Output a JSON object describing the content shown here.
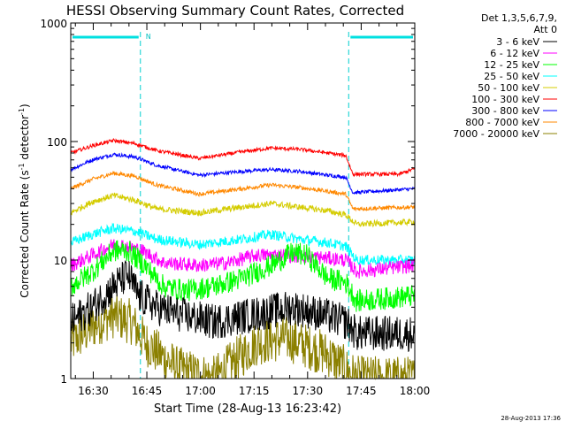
{
  "chart_data": {
    "type": "line",
    "title": "HESSI Observing Summary Count Rates, Corrected",
    "xlabel": "Start Time (28-Aug-13 16:23:42)",
    "ylabel_main": "Corrected Count Rate (s",
    "ylabel_sup1": "-1",
    "ylabel_mid": " detector",
    "ylabel_sup2": "-1",
    "ylabel_end": ")",
    "y_scale": "log",
    "ylim": [
      1,
      1000
    ],
    "xlim_minutes": [
      0,
      96.3
    ],
    "xticks": [
      {
        "label": "16:30",
        "m": 6.3
      },
      {
        "label": "16:45",
        "m": 21.3
      },
      {
        "label": "17:00",
        "m": 36.3
      },
      {
        "label": "17:15",
        "m": 51.3
      },
      {
        "label": "17:30",
        "m": 66.3
      },
      {
        "label": "17:45",
        "m": 81.3
      },
      {
        "label": "18:00",
        "m": 96.3
      }
    ],
    "yticks": [
      {
        "label": "1",
        "v": 1
      },
      {
        "label": "10",
        "v": 10
      },
      {
        "label": "100",
        "v": 100
      },
      {
        "label": "1000",
        "v": 1000
      }
    ],
    "grid": false,
    "legend_position": "right",
    "legend_header": [
      "Det 1,3,5,6,7,9,",
      "Att 0"
    ],
    "footer": "28-Aug-2013 17:36",
    "night_band_marker": "N",
    "night_intervals_minutes": [
      [
        0,
        19.5
      ],
      [
        77.8,
        96.3
      ]
    ],
    "series": [
      {
        "name": "3 - 6 keV",
        "color": "#000000",
        "knots": [
          [
            0,
            3
          ],
          [
            6,
            4
          ],
          [
            12,
            6
          ],
          [
            16,
            7.5
          ],
          [
            19,
            5
          ],
          [
            24,
            4
          ],
          [
            30,
            3.5
          ],
          [
            40,
            3
          ],
          [
            52,
            3.5
          ],
          [
            62,
            4
          ],
          [
            70,
            3.5
          ],
          [
            77,
            3
          ],
          [
            80,
            2.4
          ],
          [
            96.3,
            2.4
          ]
        ],
        "noise": 0.35
      },
      {
        "name": "6 - 12 keV",
        "color": "#ff00ff",
        "knots": [
          [
            0,
            9
          ],
          [
            6,
            11
          ],
          [
            12,
            13.5
          ],
          [
            16,
            13
          ],
          [
            20,
            12
          ],
          [
            26,
            9.5
          ],
          [
            36,
            9
          ],
          [
            44,
            9.5
          ],
          [
            52,
            11
          ],
          [
            60,
            11
          ],
          [
            70,
            10.5
          ],
          [
            77,
            10
          ],
          [
            80,
            8
          ],
          [
            96.3,
            9
          ]
        ],
        "noise": 0.14
      },
      {
        "name": "12 - 25 keV",
        "color": "#00ff00",
        "knots": [
          [
            0,
            6
          ],
          [
            6,
            8
          ],
          [
            12,
            12
          ],
          [
            16,
            12
          ],
          [
            20,
            9.5
          ],
          [
            26,
            6
          ],
          [
            32,
            5.5
          ],
          [
            40,
            6
          ],
          [
            48,
            7
          ],
          [
            56,
            9
          ],
          [
            62,
            11.5
          ],
          [
            66,
            11
          ],
          [
            72,
            7
          ],
          [
            77,
            6.5
          ],
          [
            80,
            4.5
          ],
          [
            96.3,
            5
          ]
        ],
        "noise": 0.22
      },
      {
        "name": "25 - 50 keV",
        "color": "#00ffff",
        "knots": [
          [
            0,
            14
          ],
          [
            6,
            16.5
          ],
          [
            12,
            18.5
          ],
          [
            18,
            17.5
          ],
          [
            24,
            15
          ],
          [
            36,
            13.5
          ],
          [
            48,
            15
          ],
          [
            56,
            16.5
          ],
          [
            64,
            15
          ],
          [
            72,
            14
          ],
          [
            77,
            13
          ],
          [
            80,
            10
          ],
          [
            96.3,
            10
          ]
        ],
        "noise": 0.1
      },
      {
        "name": "50 - 100 keV",
        "color": "#d4cc00",
        "knots": [
          [
            0,
            25
          ],
          [
            6,
            31
          ],
          [
            12,
            35
          ],
          [
            18,
            32
          ],
          [
            24,
            27
          ],
          [
            36,
            25
          ],
          [
            48,
            28
          ],
          [
            56,
            30
          ],
          [
            64,
            28
          ],
          [
            72,
            26
          ],
          [
            77,
            24
          ],
          [
            80,
            20
          ],
          [
            96.3,
            21
          ]
        ],
        "noise": 0.06
      },
      {
        "name": "100 - 300 keV",
        "color": "#ff0000",
        "knots": [
          [
            0,
            80
          ],
          [
            6,
            92
          ],
          [
            12,
            102
          ],
          [
            18,
            96
          ],
          [
            24,
            84
          ],
          [
            36,
            72
          ],
          [
            48,
            82
          ],
          [
            56,
            88
          ],
          [
            64,
            86
          ],
          [
            72,
            80
          ],
          [
            77,
            76
          ],
          [
            79,
            53
          ],
          [
            92,
            53
          ],
          [
            96.3,
            59
          ]
        ],
        "noise": 0.035
      },
      {
        "name": "300 - 800 keV",
        "color": "#0000ff",
        "knots": [
          [
            0,
            58
          ],
          [
            6,
            70
          ],
          [
            12,
            78
          ],
          [
            18,
            74
          ],
          [
            24,
            63
          ],
          [
            36,
            52
          ],
          [
            48,
            56
          ],
          [
            56,
            58
          ],
          [
            64,
            56
          ],
          [
            72,
            52
          ],
          [
            77,
            50
          ],
          [
            79,
            37
          ],
          [
            96.3,
            40
          ]
        ],
        "noise": 0.035
      },
      {
        "name": "800 - 7000 keV",
        "color": "#ff8800",
        "knots": [
          [
            0,
            40
          ],
          [
            6,
            48
          ],
          [
            12,
            54
          ],
          [
            18,
            51
          ],
          [
            24,
            43
          ],
          [
            36,
            36
          ],
          [
            48,
            40
          ],
          [
            56,
            43
          ],
          [
            64,
            41
          ],
          [
            72,
            38
          ],
          [
            77,
            36
          ],
          [
            79,
            27
          ],
          [
            96.3,
            28
          ]
        ],
        "noise": 0.04
      },
      {
        "name": "7000 - 20000 keV",
        "color": "#8b8000",
        "knots": [
          [
            0,
            2
          ],
          [
            8,
            3
          ],
          [
            12,
            3.4
          ],
          [
            17,
            3
          ],
          [
            21,
            2
          ],
          [
            30,
            1.2
          ],
          [
            40,
            1
          ],
          [
            52,
            2
          ],
          [
            60,
            2.2
          ],
          [
            72,
            1.6
          ],
          [
            77,
            1.2
          ],
          [
            80,
            1
          ],
          [
            96.3,
            1
          ]
        ],
        "noise": 0.45
      }
    ]
  }
}
